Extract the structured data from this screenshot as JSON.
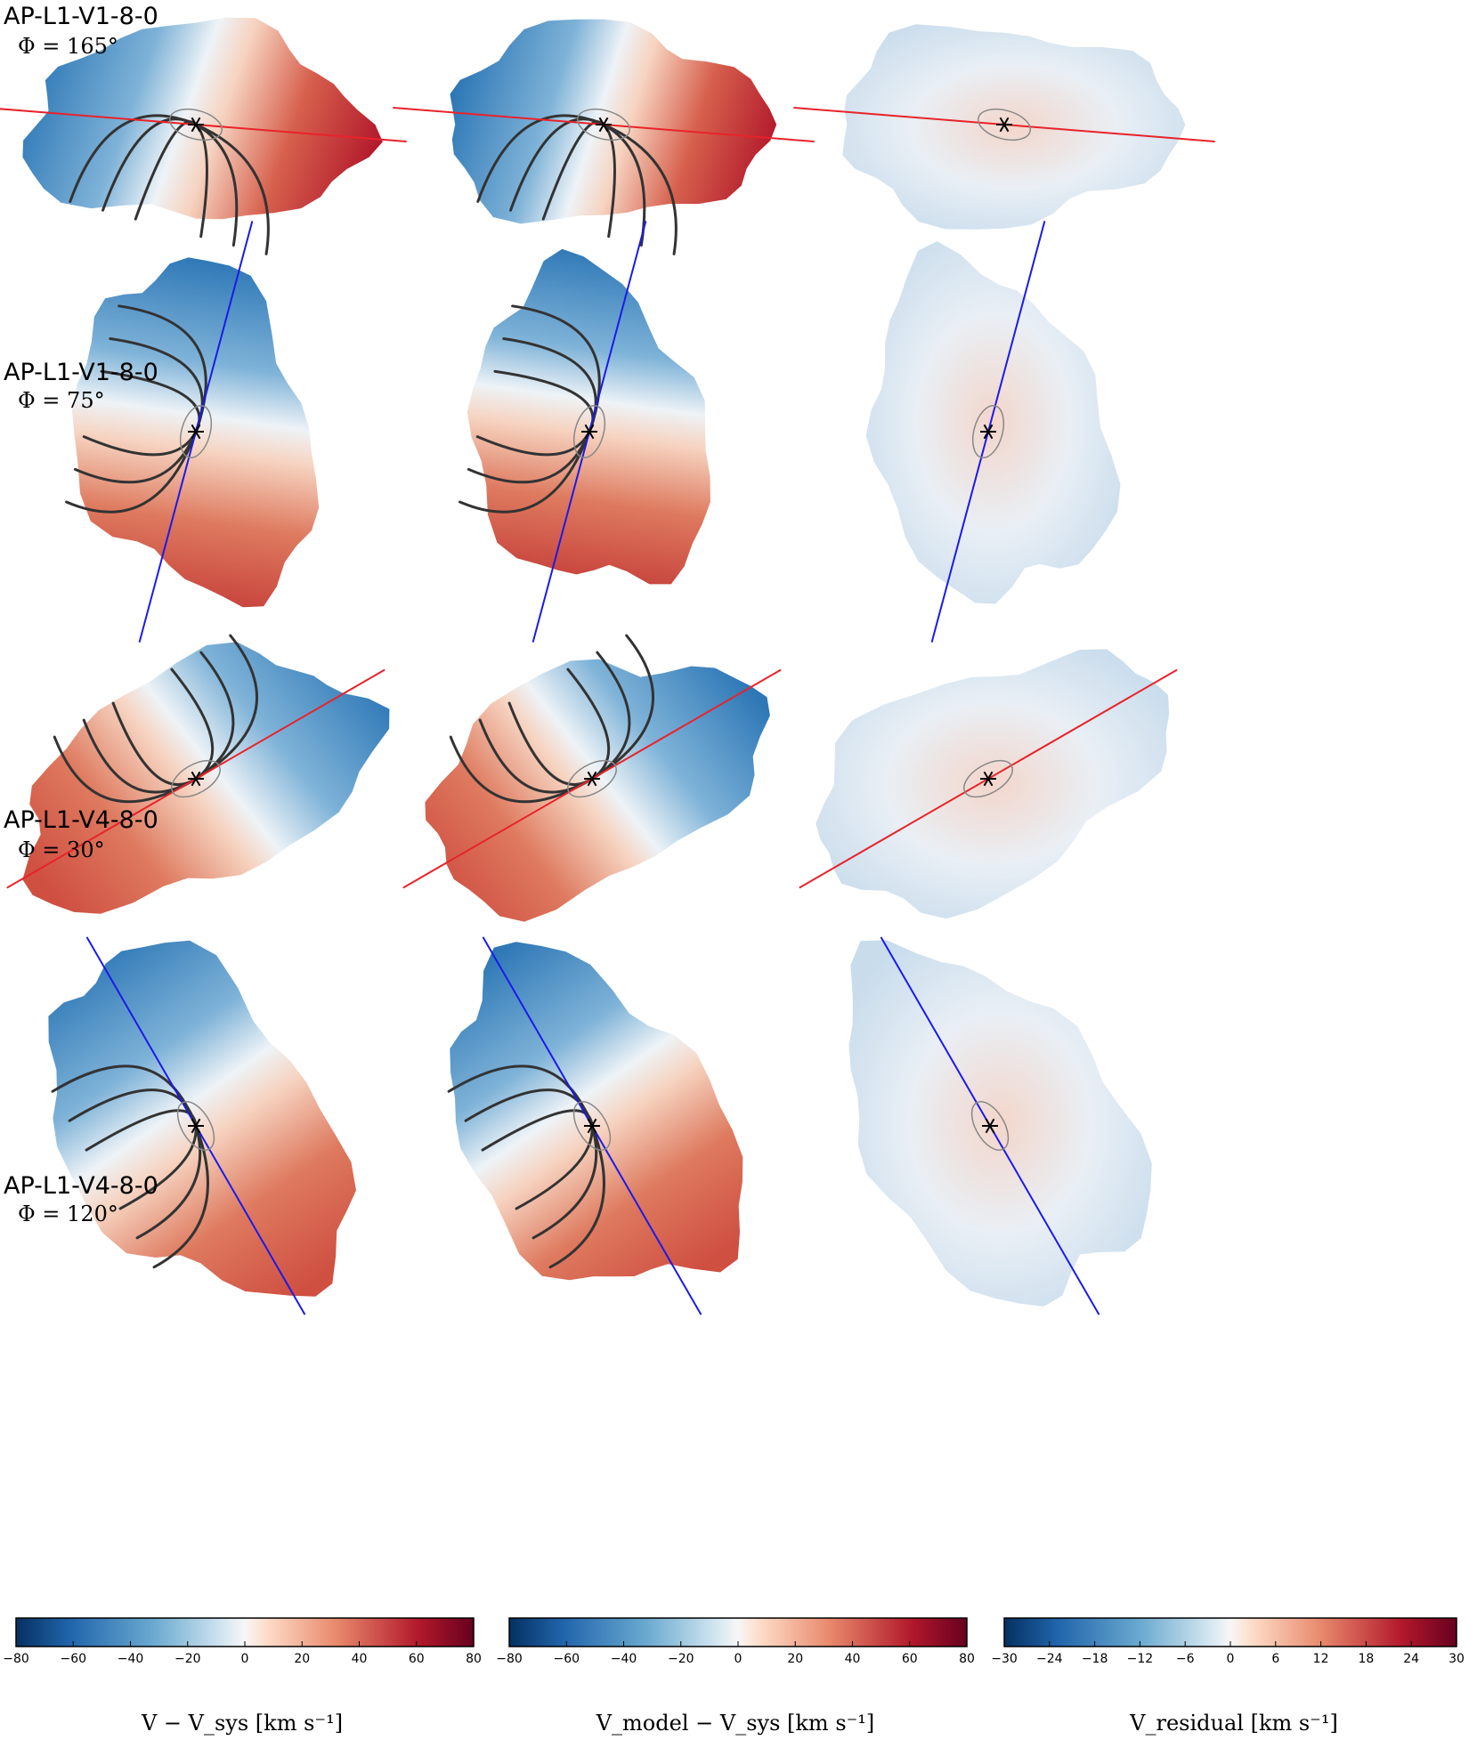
{
  "figure": {
    "rows": [
      {
        "model": "AP-L1-V1-8-0",
        "phi": "Φ = 165°",
        "pa_deg": 165,
        "line_color": "#e8232a"
      },
      {
        "model": "AP-L1-V1-8-0",
        "phi": "Φ = 75°",
        "pa_deg": 75,
        "line_color": "#1a1aea"
      },
      {
        "model": "AP-L1-V4-8-0",
        "phi": "Φ = 30°",
        "pa_deg": 30,
        "line_color": "#e8232a"
      },
      {
        "model": "AP-L1-V4-8-0",
        "phi": "Φ = 120°",
        "pa_deg": 120,
        "line_color": "#1a1aea"
      }
    ],
    "colorbars": [
      {
        "label": "V − V_sys [km s⁻¹]",
        "ticks": [
          "−80",
          "−60",
          "−40",
          "−20",
          "0",
          "20",
          "40",
          "60",
          "80"
        ],
        "range": [
          -80,
          80
        ]
      },
      {
        "label": "V_model − V_sys [km s⁻¹]",
        "ticks": [
          "−80",
          "−60",
          "−40",
          "−20",
          "0",
          "20",
          "40",
          "60",
          "80"
        ],
        "range": [
          -80,
          80
        ]
      },
      {
        "label": "V_residual [km s⁻¹]",
        "ticks": [
          "−30",
          "−24",
          "−18",
          "−12",
          "−6",
          "0",
          "6",
          "12",
          "18",
          "24",
          "30"
        ],
        "range": [
          -30,
          30
        ]
      }
    ],
    "colormap": {
      "low": "#2166ac",
      "mid": "#f7f7f7",
      "high": "#b2182b",
      "ends": [
        "#053061",
        "#67001f"
      ]
    }
  }
}
